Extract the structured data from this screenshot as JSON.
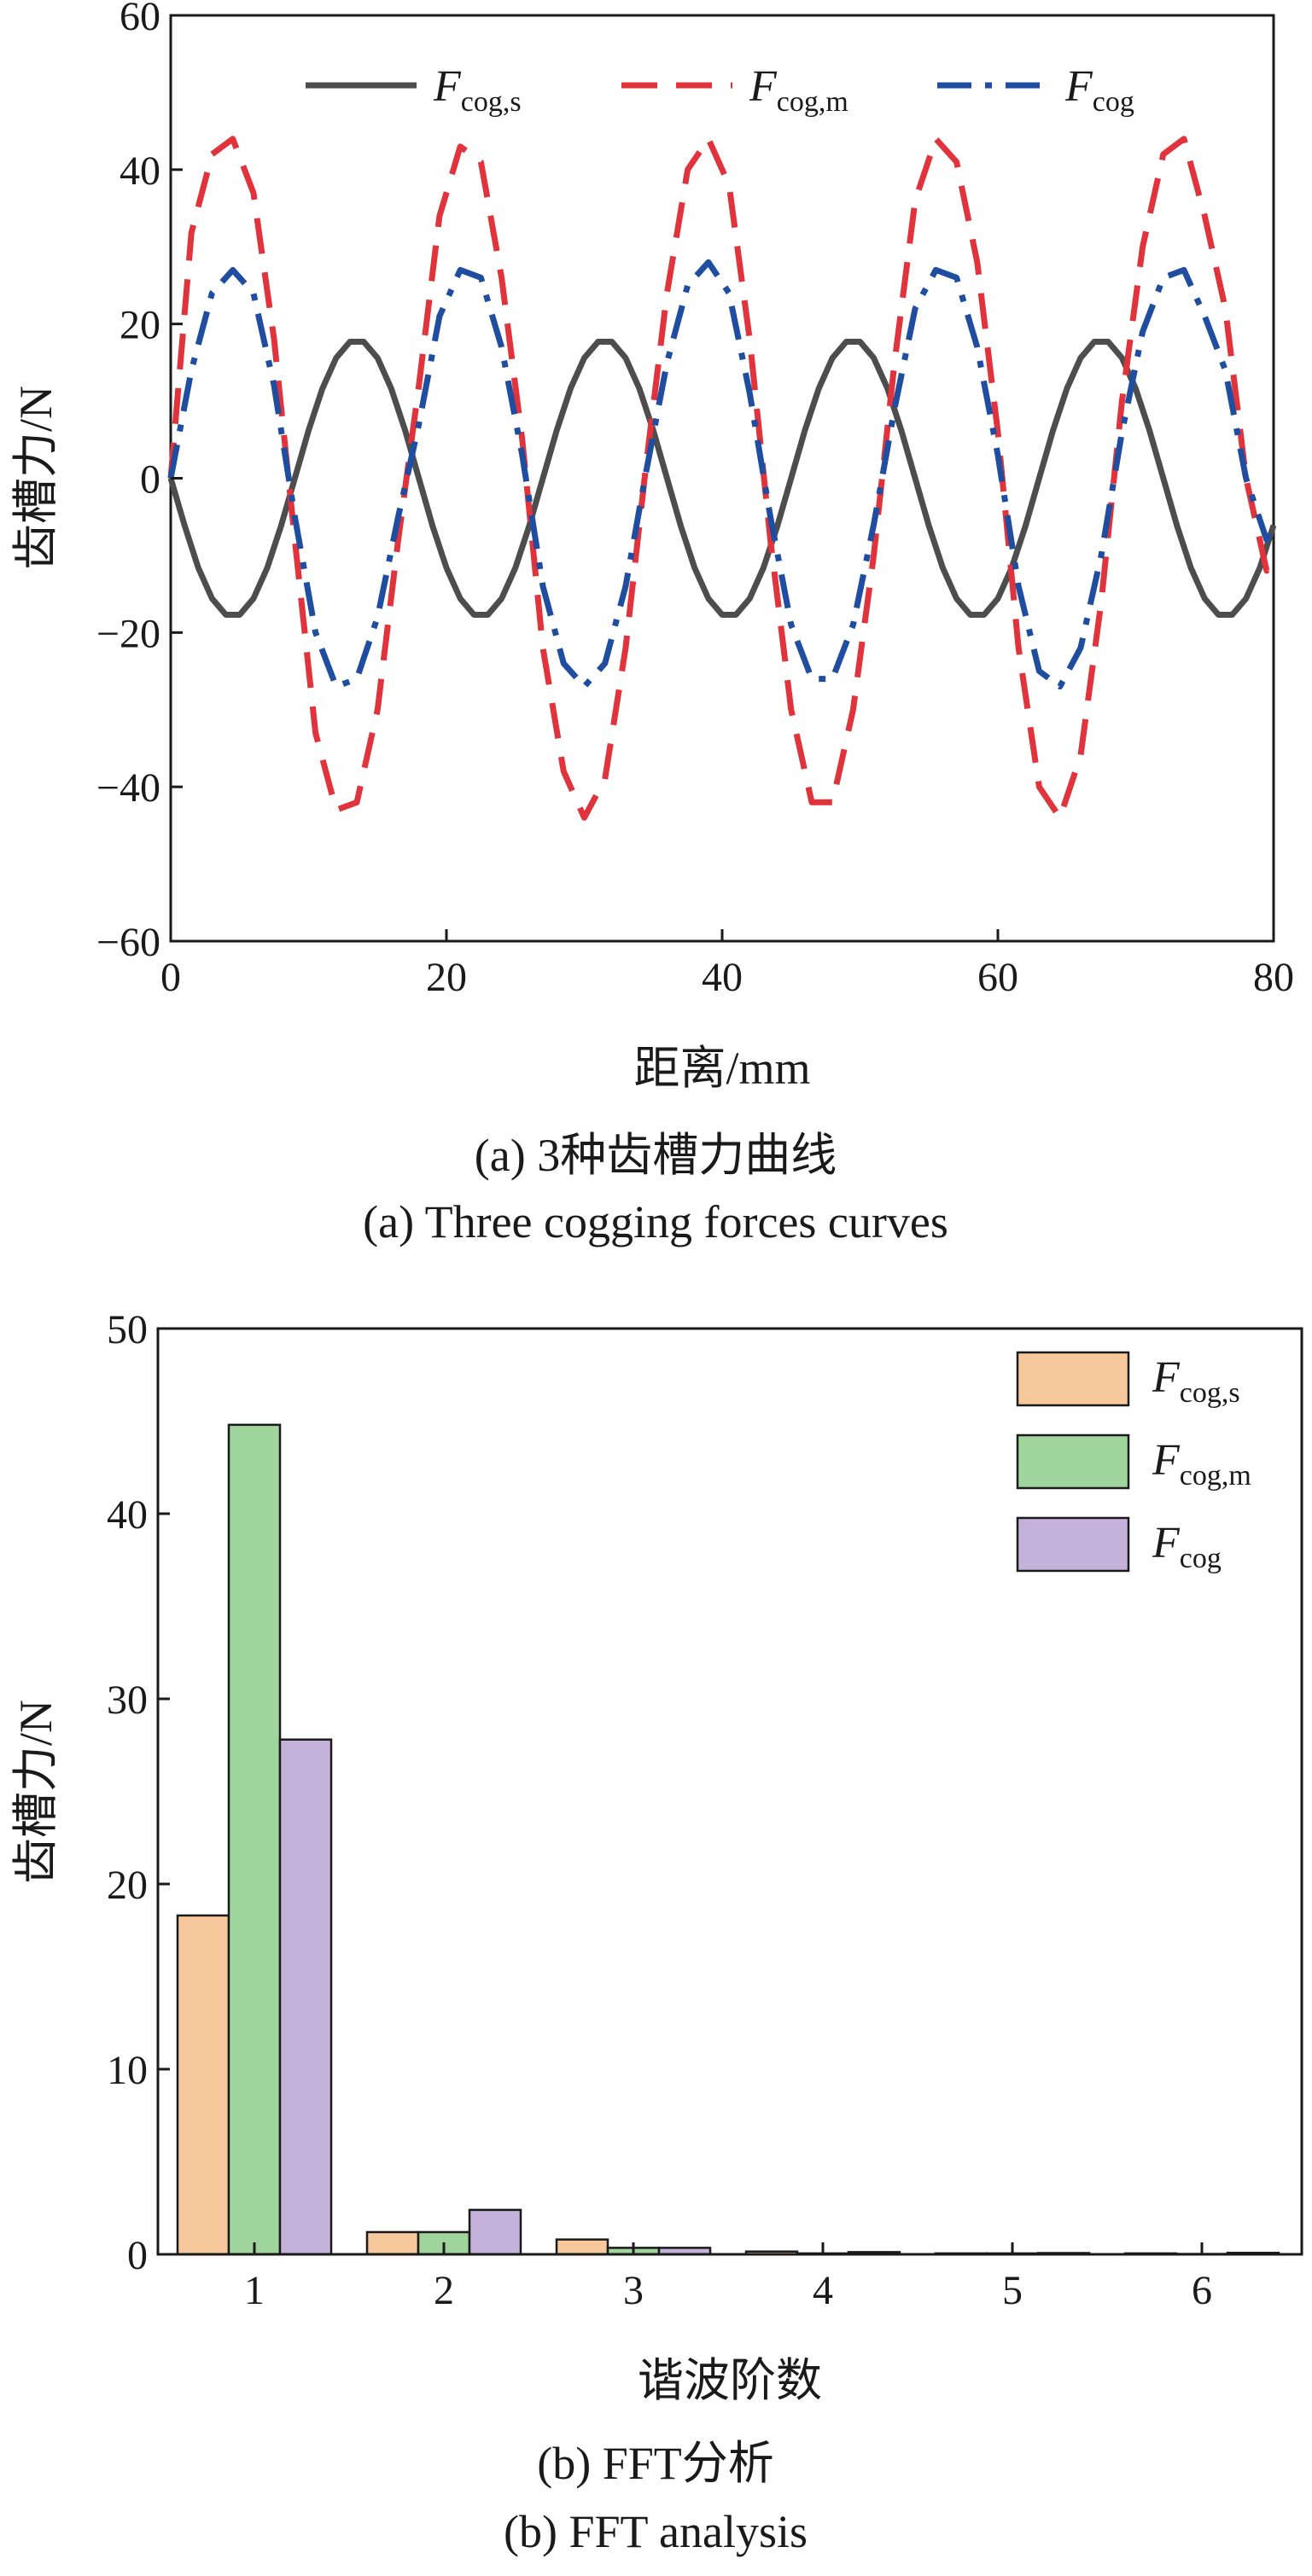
{
  "colors": {
    "f_cog_s": "#4d4d4d",
    "f_cog_m": "#e0333b",
    "f_cog": "#1f4ea1",
    "bar_f_cog_s": "#f8c89d",
    "bar_f_cog_m": "#9fd49c",
    "bar_f_cog": "#c4b2da"
  },
  "figures": {
    "a": {
      "caption_zh": "(a) 3种齿槽力曲线",
      "caption_en": "(a) Three cogging forces curves"
    },
    "b": {
      "caption_zh": "(b) FFT分析",
      "caption_en": "(b) FFT analysis"
    }
  },
  "chart_data": [
    {
      "type": "line",
      "xlabel": "距离/mm",
      "ylabel": "齿槽力/N",
      "xlim": [
        0,
        80
      ],
      "ylim": [
        -60,
        60
      ],
      "xticks": [
        "0",
        "20",
        "40",
        "60",
        "80"
      ],
      "yticks": [
        "-60",
        "-40",
        "-20",
        "0",
        "20",
        "40",
        "60"
      ],
      "legend_position": "top",
      "series": [
        {
          "name_main": "F",
          "name_sub": "cog,s",
          "style": "solid",
          "x": [
            0,
            1,
            2,
            3,
            4,
            5,
            6,
            7,
            8,
            9,
            10,
            11,
            12,
            13,
            14,
            15,
            16,
            17,
            18,
            19,
            20,
            21,
            22,
            23,
            24,
            25,
            26,
            27,
            28,
            29,
            30,
            31,
            32,
            33,
            34,
            35,
            36,
            37,
            38,
            39,
            40,
            41,
            42,
            43,
            44,
            45,
            46,
            47,
            48,
            49,
            50,
            51,
            52,
            53,
            54,
            55,
            56,
            57,
            58,
            59,
            60,
            61,
            62,
            63,
            64,
            65,
            66,
            67,
            68,
            69,
            70,
            71,
            72,
            73,
            74,
            75,
            76,
            77,
            78,
            79,
            80
          ],
          "y": [
            0,
            -6.1,
            -11.6,
            -15.6,
            -17.7,
            -17.7,
            -15.6,
            -11.6,
            -6.2,
            0,
            6.2,
            11.6,
            15.6,
            17.7,
            17.7,
            15.6,
            11.6,
            6.2,
            0,
            -6.2,
            -11.6,
            -15.6,
            -17.7,
            -17.7,
            -15.6,
            -11.6,
            -6.2,
            0,
            6.2,
            11.6,
            15.6,
            17.7,
            17.7,
            15.6,
            11.6,
            6.2,
            0,
            -6.2,
            -11.6,
            -15.6,
            -17.7,
            -17.7,
            -15.6,
            -11.6,
            -6.2,
            0,
            6.2,
            11.6,
            15.6,
            17.7,
            17.7,
            15.6,
            11.6,
            6.2,
            0,
            -6.2,
            -11.6,
            -15.6,
            -17.7,
            -17.7,
            -15.6,
            -11.6,
            -6.2,
            0,
            6.2,
            11.6,
            15.6,
            17.7,
            17.7,
            15.6,
            11.6,
            6.2,
            0,
            -6.2,
            -11.6,
            -15.6,
            -17.7,
            -17.7,
            -15.6,
            -11.6,
            -6.1
          ]
        },
        {
          "name_main": "F",
          "name_sub": "cog,m",
          "style": "dashed",
          "x": [
            0,
            1.5,
            3,
            4.5,
            6,
            7.5,
            9,
            10.5,
            12,
            13.5,
            15,
            16.5,
            18,
            19.5,
            21,
            22.5,
            24,
            25.5,
            27,
            28.5,
            30,
            31.5,
            33,
            34.5,
            36,
            37.5,
            39,
            40.5,
            42,
            43.5,
            45,
            46.5,
            48,
            49.5,
            51,
            52.5,
            54,
            55.5,
            57,
            58.5,
            60,
            61.5,
            63,
            64.5,
            66,
            67.5,
            69,
            70.5,
            72,
            73.5,
            75,
            76.5,
            78,
            79.5,
            80
          ],
          "y": [
            0,
            31.8,
            42,
            44,
            37,
            18,
            -8,
            -33,
            -43,
            -42,
            -30,
            -8,
            12,
            34,
            43,
            41,
            26,
            5,
            -22,
            -38,
            -44,
            -39,
            -22,
            2,
            24,
            40,
            44,
            38,
            18,
            -8,
            -30,
            -42,
            -42,
            -30,
            -10,
            15,
            36,
            44,
            41,
            28,
            6,
            -22,
            -40,
            -44,
            -36,
            -16,
            10,
            30,
            42,
            44,
            34,
            22,
            0,
            -12,
            -10
          ]
        },
        {
          "name_main": "F",
          "name_sub": "cog",
          "style": "dashdot",
          "x": [
            0,
            1.5,
            3,
            4.5,
            6,
            7.5,
            9,
            10.5,
            12,
            13.5,
            15,
            16.5,
            18,
            19.5,
            21,
            22.5,
            24,
            25.5,
            27,
            28.5,
            30,
            31.5,
            33,
            34.5,
            36,
            37.5,
            39,
            40.5,
            42,
            43.5,
            45,
            46.5,
            48,
            49.5,
            51,
            52.5,
            54,
            55.5,
            57,
            58.5,
            60,
            61.5,
            63,
            64.5,
            66,
            67.5,
            69,
            70.5,
            72,
            73.5,
            75,
            76.5,
            78,
            79.5,
            80
          ],
          "y": [
            0,
            14,
            24,
            27,
            24,
            12,
            -5,
            -20,
            -27,
            -26,
            -18,
            -5,
            7,
            21,
            27,
            26,
            17,
            3,
            -14,
            -24,
            -27,
            -24,
            -14,
            1,
            15,
            25,
            28,
            24,
            11,
            -5,
            -19,
            -26,
            -26,
            -19,
            -6,
            9,
            22,
            27,
            26,
            17,
            3,
            -14,
            -25,
            -27,
            -22,
            -10,
            6,
            19,
            26,
            27,
            21,
            14,
            0,
            -8,
            -6
          ]
        }
      ]
    },
    {
      "type": "bar",
      "xlabel": "谐波阶数",
      "ylabel": "齿槽力/N",
      "ylim": [
        0,
        50
      ],
      "yticks": [
        "0",
        "10",
        "20",
        "30",
        "40",
        "50"
      ],
      "categories": [
        "1",
        "2",
        "3",
        "4",
        "5",
        "6"
      ],
      "legend_position": "top-right",
      "series": [
        {
          "name_main": "F",
          "name_sub": "cog,s",
          "values": [
            18.3,
            1.2,
            0.8,
            0.15,
            0.05,
            0.05
          ]
        },
        {
          "name_main": "F",
          "name_sub": "cog,m",
          "values": [
            44.8,
            1.2,
            0.35,
            0.05,
            0.05,
            0.02
          ]
        },
        {
          "name_main": "F",
          "name_sub": "cog",
          "values": [
            27.8,
            2.4,
            0.35,
            0.12,
            0.07,
            0.08
          ]
        }
      ]
    }
  ]
}
